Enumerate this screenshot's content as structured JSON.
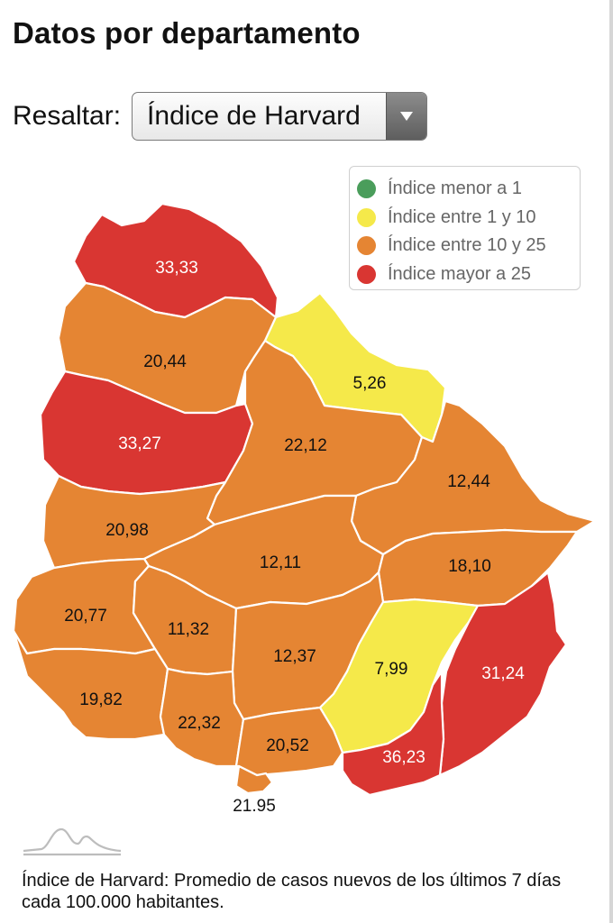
{
  "header": {
    "title": "Datos por departamento"
  },
  "control": {
    "label": "Resaltar:",
    "selected": "Índice de Harvard",
    "arrow_icon": "triangle-down-icon"
  },
  "legend": {
    "items": [
      {
        "label": "Índice menor a 1",
        "color": "#4a9d5b"
      },
      {
        "label": "Índice entre 1 y 10",
        "color": "#f5e94a"
      },
      {
        "label": "Índice entre 10 y 25",
        "color": "#e58533"
      },
      {
        "label": "Índice mayor a 25",
        "color": "#d93632"
      }
    ]
  },
  "map": {
    "departments": [
      {
        "value": "33,33",
        "category": "mayor_25"
      },
      {
        "value": "20,44",
        "category": "10_25"
      },
      {
        "value": "5,26",
        "category": "1_10"
      },
      {
        "value": "33,27",
        "category": "mayor_25"
      },
      {
        "value": "22,12",
        "category": "10_25"
      },
      {
        "value": "12,44",
        "category": "10_25"
      },
      {
        "value": "20,98",
        "category": "10_25"
      },
      {
        "value": "12,11",
        "category": "10_25"
      },
      {
        "value": "18,10",
        "category": "10_25"
      },
      {
        "value": "20,77",
        "category": "10_25"
      },
      {
        "value": "11,32",
        "category": "10_25"
      },
      {
        "value": "12,37",
        "category": "10_25"
      },
      {
        "value": "7,99",
        "category": "1_10"
      },
      {
        "value": "31,24",
        "category": "mayor_25"
      },
      {
        "value": "19,82",
        "category": "10_25"
      },
      {
        "value": "22,32",
        "category": "10_25"
      },
      {
        "value": "20,52",
        "category": "10_25"
      },
      {
        "value": "36,23",
        "category": "mayor_25"
      },
      {
        "value": "21,95",
        "category": "10_25"
      }
    ]
  },
  "footer": {
    "logo_icon": "mountain-wave-icon",
    "note": "Índice de Harvard: Promedio de casos nuevos de los últimos 7 días cada 100.000 habitantes."
  }
}
